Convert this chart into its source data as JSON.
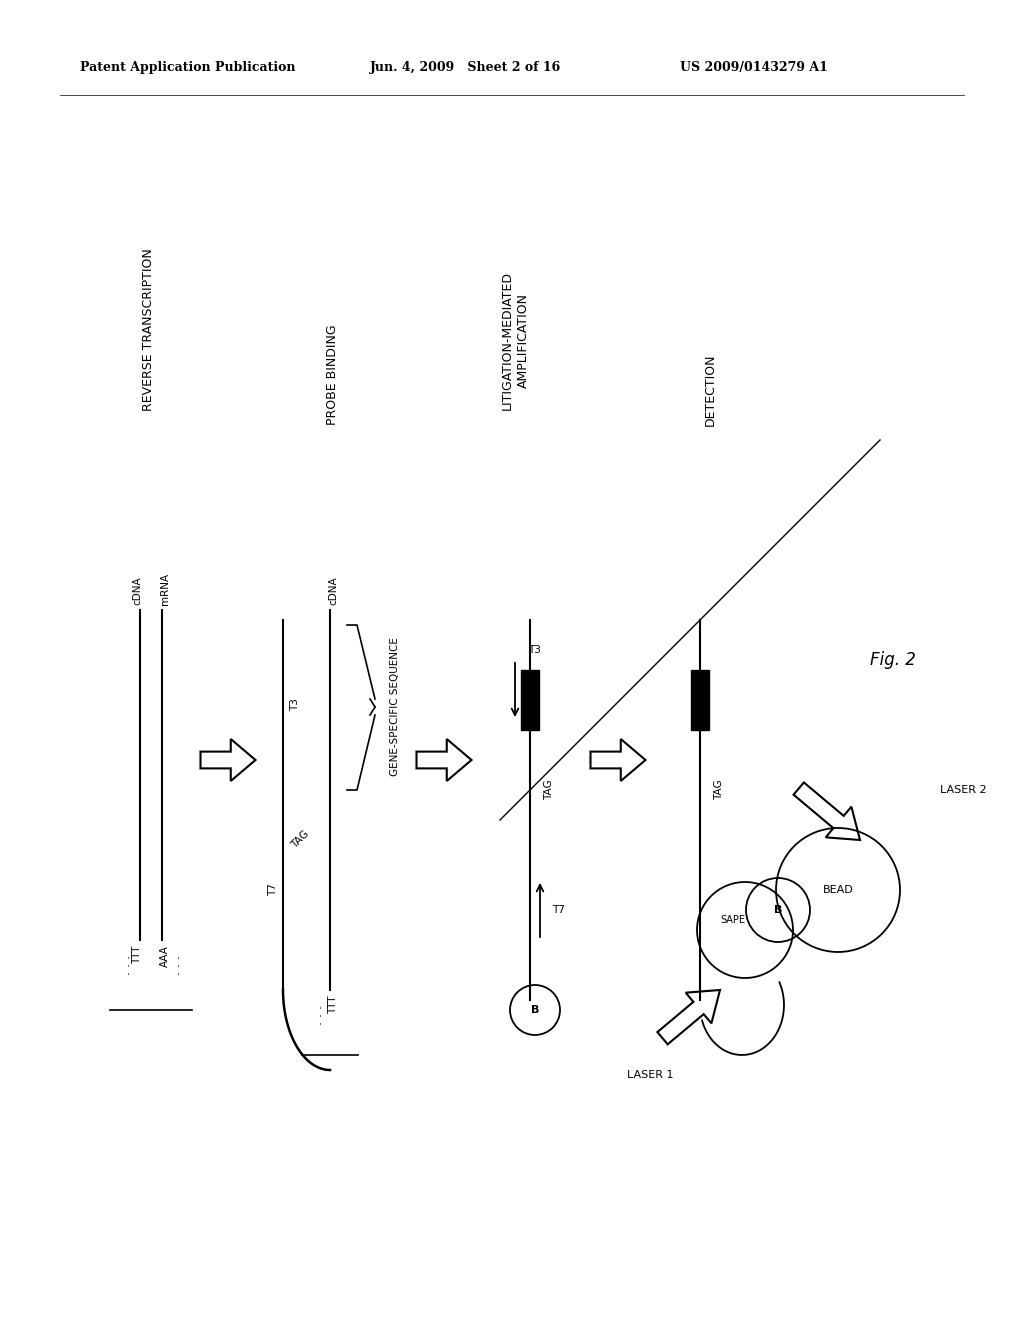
{
  "header_left": "Patent Application Publication",
  "header_mid": "Jun. 4, 2009   Sheet 2 of 16",
  "header_right": "US 2009/0143279 A1",
  "fig_label": "Fig. 2",
  "background": "#ffffff"
}
